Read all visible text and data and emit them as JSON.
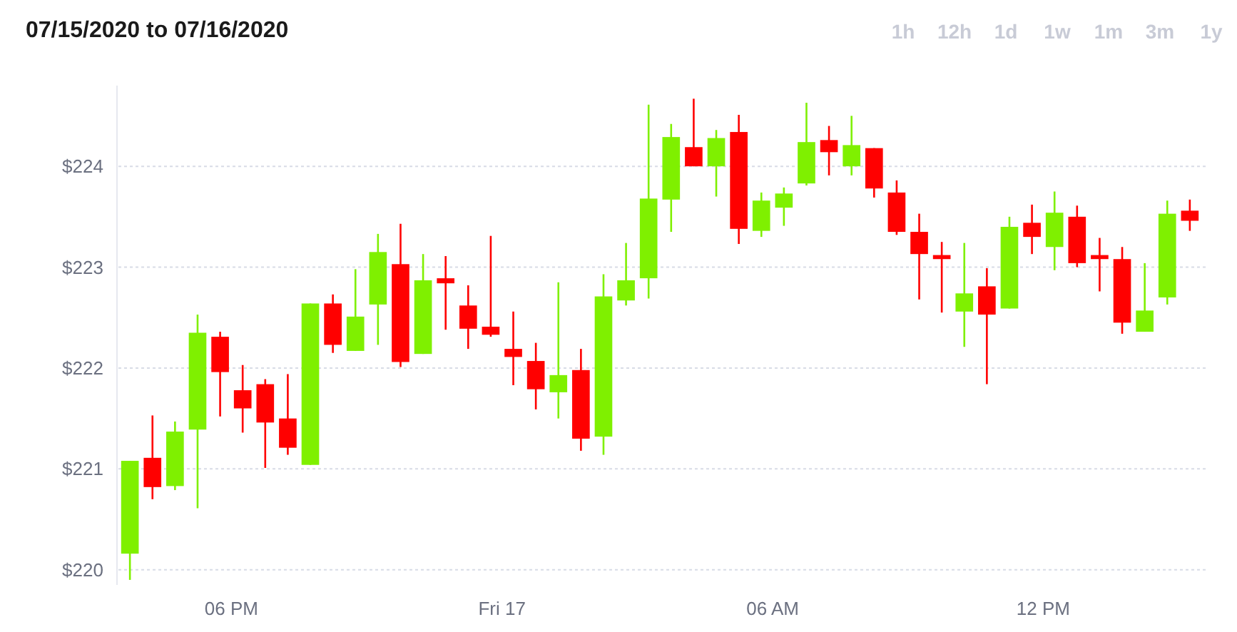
{
  "chart_data": {
    "type": "candlestick",
    "title": "07/15/2020 to 07/16/2020",
    "annotations": [
      "1h",
      "12h",
      "1d",
      "1w",
      "1m",
      "3m",
      "1y"
    ],
    "x": [
      "2020-07-16T15:45",
      "2020-07-16T16:15",
      "2020-07-16T16:45",
      "2020-07-16T17:15",
      "2020-07-16T17:45",
      "2020-07-16T18:15",
      "2020-07-16T18:45",
      "2020-07-16T19:15",
      "2020-07-16T19:45",
      "2020-07-16T20:15",
      "2020-07-16T20:45",
      "2020-07-16T21:15",
      "2020-07-16T21:45",
      "2020-07-16T22:15",
      "2020-07-16T22:45",
      "2020-07-16T23:15",
      "2020-07-16T23:45",
      "2020-07-17T00:15",
      "2020-07-17T00:45",
      "2020-07-17T01:15",
      "2020-07-17T01:45",
      "2020-07-17T02:15",
      "2020-07-17T02:45",
      "2020-07-17T03:15",
      "2020-07-17T03:45",
      "2020-07-17T04:15",
      "2020-07-17T04:45",
      "2020-07-17T05:15",
      "2020-07-17T05:45",
      "2020-07-17T06:15",
      "2020-07-17T06:45",
      "2020-07-17T07:15",
      "2020-07-17T07:45",
      "2020-07-17T08:15",
      "2020-07-17T08:45",
      "2020-07-17T09:15",
      "2020-07-17T09:45",
      "2020-07-17T10:15",
      "2020-07-17T10:45",
      "2020-07-17T11:15",
      "2020-07-17T11:45",
      "2020-07-17T12:15",
      "2020-07-17T12:45",
      "2020-07-17T13:15",
      "2020-07-17T13:45",
      "2020-07-17T14:15",
      "2020-07-17T14:45",
      "2020-07-17T15:15"
    ],
    "ohlc": [
      [
        220.16,
        221.08,
        219.9,
        221.08
      ],
      [
        221.11,
        221.53,
        220.7,
        220.82
      ],
      [
        220.83,
        221.47,
        220.79,
        221.37
      ],
      [
        221.39,
        222.53,
        220.61,
        222.35
      ],
      [
        222.31,
        222.36,
        221.52,
        221.96
      ],
      [
        221.78,
        222.03,
        221.36,
        221.6
      ],
      [
        221.84,
        221.89,
        221.01,
        221.46
      ],
      [
        221.5,
        221.94,
        221.14,
        221.21
      ],
      [
        221.04,
        222.64,
        221.04,
        222.64
      ],
      [
        222.64,
        222.73,
        222.15,
        222.23
      ],
      [
        222.17,
        222.98,
        222.17,
        222.51
      ],
      [
        222.63,
        223.33,
        222.23,
        223.15
      ],
      [
        223.03,
        223.43,
        222.01,
        222.06
      ],
      [
        222.14,
        223.13,
        222.14,
        222.87
      ],
      [
        222.89,
        223.11,
        222.38,
        222.84
      ],
      [
        222.62,
        222.82,
        222.19,
        222.39
      ],
      [
        222.41,
        223.31,
        222.31,
        222.33
      ],
      [
        222.19,
        222.56,
        221.83,
        222.11
      ],
      [
        222.07,
        222.25,
        221.59,
        221.79
      ],
      [
        221.76,
        222.85,
        221.5,
        221.93
      ],
      [
        221.98,
        222.19,
        221.18,
        221.3
      ],
      [
        221.32,
        222.93,
        221.14,
        222.71
      ],
      [
        222.67,
        223.24,
        222.62,
        222.87
      ],
      [
        222.89,
        224.61,
        222.69,
        223.68
      ],
      [
        223.67,
        224.42,
        223.35,
        224.29
      ],
      [
        224.19,
        224.67,
        224,
        224
      ],
      [
        224,
        224.36,
        223.7,
        224.28
      ],
      [
        224.34,
        224.51,
        223.23,
        223.38
      ],
      [
        223.36,
        223.74,
        223.3,
        223.66
      ],
      [
        223.59,
        223.79,
        223.41,
        223.73
      ],
      [
        223.83,
        224.63,
        223.81,
        224.24
      ],
      [
        224.26,
        224.4,
        223.91,
        224.14
      ],
      [
        224,
        224.5,
        223.91,
        224.21
      ],
      [
        224.18,
        224.18,
        223.69,
        223.78
      ],
      [
        223.74,
        223.86,
        223.32,
        223.35
      ],
      [
        223.35,
        223.53,
        222.68,
        223.13
      ],
      [
        223.12,
        223.25,
        222.55,
        223.08
      ],
      [
        222.56,
        223.24,
        222.21,
        222.74
      ],
      [
        222.81,
        222.99,
        221.84,
        222.53
      ],
      [
        222.59,
        223.5,
        222.59,
        223.4
      ],
      [
        223.44,
        223.62,
        223.13,
        223.3
      ],
      [
        223.2,
        223.75,
        222.97,
        223.54
      ],
      [
        223.5,
        223.61,
        223,
        223.04
      ],
      [
        223.12,
        223.29,
        222.76,
        223.08
      ],
      [
        223.08,
        223.2,
        222.34,
        222.45
      ],
      [
        222.36,
        223.04,
        222.36,
        222.57
      ],
      [
        222.7,
        223.66,
        222.63,
        223.53
      ],
      [
        223.56,
        223.67,
        223.36,
        223.46
      ]
    ],
    "colors": [
      "#7ff000",
      "#ff0000",
      "#7ff000",
      "#7ff000",
      "#ff0000",
      "#ff0000",
      "#ff0000",
      "#ff0000",
      "#7ff000",
      "#ff0000",
      "#7ff000",
      "#7ff000",
      "#ff0000",
      "#7ff000",
      "#ff0000",
      "#ff0000",
      "#ff0000",
      "#ff0000",
      "#ff0000",
      "#7ff000",
      "#ff0000",
      "#7ff000",
      "#7ff000",
      "#7ff000",
      "#7ff000",
      "#ff0000",
      "#7ff000",
      "#ff0000",
      "#7ff000",
      "#7ff000",
      "#7ff000",
      "#ff0000",
      "#7ff000",
      "#ff0000",
      "#ff0000",
      "#ff0000",
      "#ff0000",
      "#7ff000",
      "#ff0000",
      "#7ff000",
      "#ff0000",
      "#7ff000",
      "#ff0000",
      "#ff0000",
      "#ff0000",
      "#7ff000",
      "#7ff000",
      "#ff0000"
    ],
    "xlim": [
      "2020-07-16T15:24",
      "2020-07-17T15:36"
    ],
    "xticks": [
      {
        "value": "2020-07-16T18:00",
        "label": "06 PM"
      },
      {
        "value": "2020-07-17T00:00",
        "label": "Fri 17"
      },
      {
        "value": "2020-07-17T06:00",
        "label": "06 AM"
      },
      {
        "value": "2020-07-17T12:00",
        "label": "12 PM"
      }
    ],
    "ylim": [
      219.85,
      224.8
    ],
    "yticks": [
      {
        "value": 220,
        "label": "$220"
      },
      {
        "value": 221,
        "label": "$221"
      },
      {
        "value": 222,
        "label": "$222"
      },
      {
        "value": 223,
        "label": "$223"
      },
      {
        "value": 224,
        "label": "$224"
      }
    ],
    "grid": "y"
  }
}
